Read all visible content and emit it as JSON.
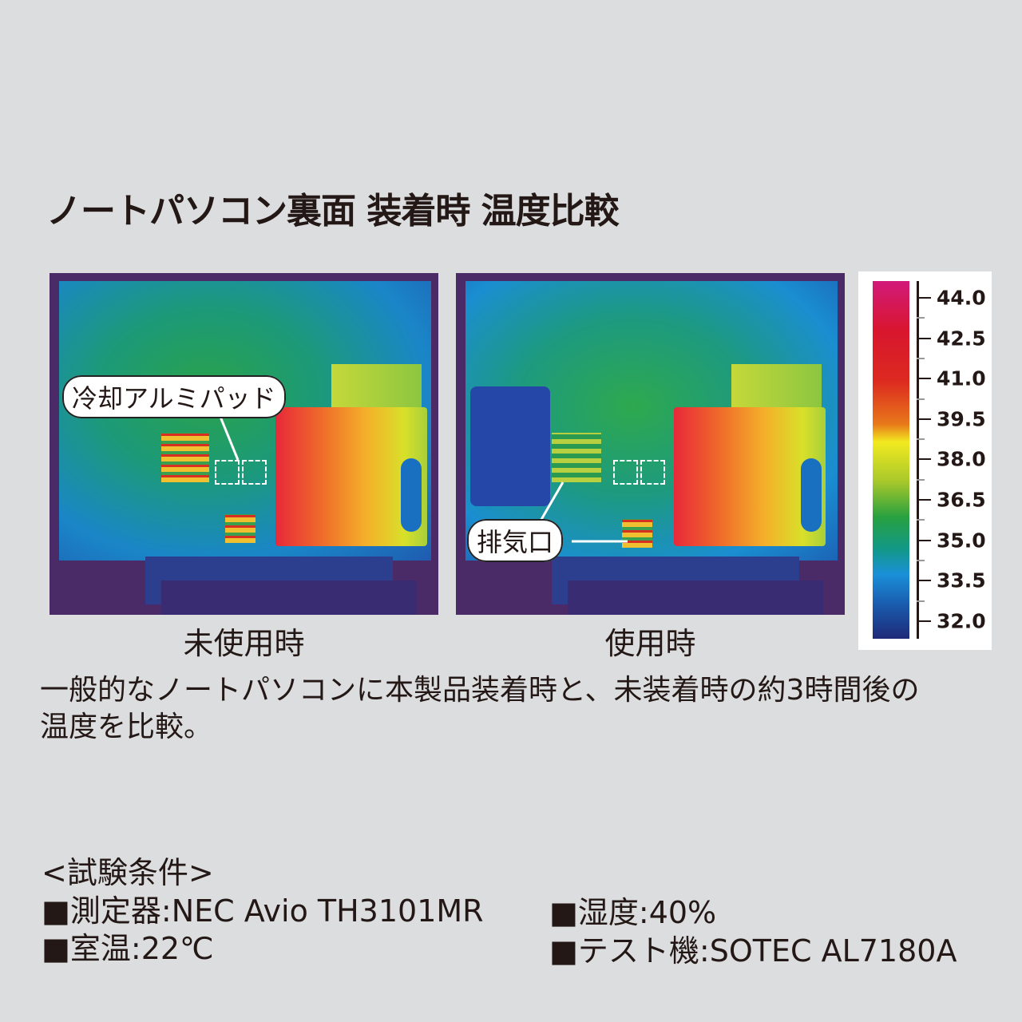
{
  "title": "ノートパソコン裏面 装着時 温度比較",
  "images": [
    {
      "caption": "未使用時",
      "callout": "冷却アルミパッド"
    },
    {
      "caption": "使用時",
      "callout": "排気口"
    }
  ],
  "scale": {
    "ticks": [
      "44.0",
      "42.5",
      "41.0",
      "39.5",
      "38.0",
      "36.5",
      "35.0",
      "33.5",
      "32.0"
    ],
    "max_color": "#d21a7a",
    "min_color": "#1e2a78"
  },
  "description": [
    "一般的なノートパソコンに本製品装着時と、未装着時の約3時間後の",
    "温度を比較。"
  ],
  "conditions": {
    "heading": "<試験条件>",
    "items": [
      "■測定器:NEC Avio TH3101MR",
      "■室温:22℃",
      "■湿度:40%",
      "■テスト機:SOTEC AL7180A"
    ]
  }
}
